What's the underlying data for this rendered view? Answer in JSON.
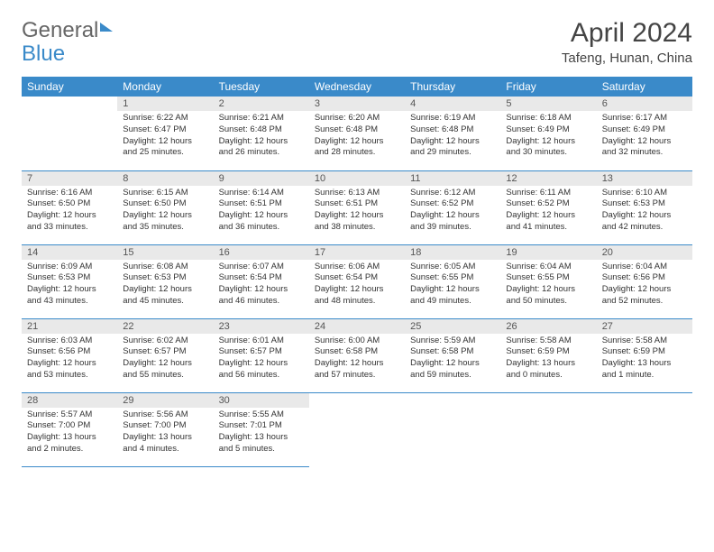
{
  "logo": {
    "part1": "General",
    "part2": "Blue"
  },
  "title": "April 2024",
  "location": "Tafeng, Hunan, China",
  "weekdays": [
    "Sunday",
    "Monday",
    "Tuesday",
    "Wednesday",
    "Thursday",
    "Friday",
    "Saturday"
  ],
  "colors": {
    "header_bg": "#3a8ac9",
    "header_text": "#ffffff",
    "daynum_bg": "#e9e9e9",
    "row_border": "#3a8ac9",
    "body_text": "#333333",
    "logo_blue": "#3a8ac9",
    "logo_gray": "#666666"
  },
  "weeks": [
    [
      {
        "empty": true
      },
      {
        "num": "1",
        "sunrise": "Sunrise: 6:22 AM",
        "sunset": "Sunset: 6:47 PM",
        "day1": "Daylight: 12 hours",
        "day2": "and 25 minutes."
      },
      {
        "num": "2",
        "sunrise": "Sunrise: 6:21 AM",
        "sunset": "Sunset: 6:48 PM",
        "day1": "Daylight: 12 hours",
        "day2": "and 26 minutes."
      },
      {
        "num": "3",
        "sunrise": "Sunrise: 6:20 AM",
        "sunset": "Sunset: 6:48 PM",
        "day1": "Daylight: 12 hours",
        "day2": "and 28 minutes."
      },
      {
        "num": "4",
        "sunrise": "Sunrise: 6:19 AM",
        "sunset": "Sunset: 6:48 PM",
        "day1": "Daylight: 12 hours",
        "day2": "and 29 minutes."
      },
      {
        "num": "5",
        "sunrise": "Sunrise: 6:18 AM",
        "sunset": "Sunset: 6:49 PM",
        "day1": "Daylight: 12 hours",
        "day2": "and 30 minutes."
      },
      {
        "num": "6",
        "sunrise": "Sunrise: 6:17 AM",
        "sunset": "Sunset: 6:49 PM",
        "day1": "Daylight: 12 hours",
        "day2": "and 32 minutes."
      }
    ],
    [
      {
        "num": "7",
        "sunrise": "Sunrise: 6:16 AM",
        "sunset": "Sunset: 6:50 PM",
        "day1": "Daylight: 12 hours",
        "day2": "and 33 minutes."
      },
      {
        "num": "8",
        "sunrise": "Sunrise: 6:15 AM",
        "sunset": "Sunset: 6:50 PM",
        "day1": "Daylight: 12 hours",
        "day2": "and 35 minutes."
      },
      {
        "num": "9",
        "sunrise": "Sunrise: 6:14 AM",
        "sunset": "Sunset: 6:51 PM",
        "day1": "Daylight: 12 hours",
        "day2": "and 36 minutes."
      },
      {
        "num": "10",
        "sunrise": "Sunrise: 6:13 AM",
        "sunset": "Sunset: 6:51 PM",
        "day1": "Daylight: 12 hours",
        "day2": "and 38 minutes."
      },
      {
        "num": "11",
        "sunrise": "Sunrise: 6:12 AM",
        "sunset": "Sunset: 6:52 PM",
        "day1": "Daylight: 12 hours",
        "day2": "and 39 minutes."
      },
      {
        "num": "12",
        "sunrise": "Sunrise: 6:11 AM",
        "sunset": "Sunset: 6:52 PM",
        "day1": "Daylight: 12 hours",
        "day2": "and 41 minutes."
      },
      {
        "num": "13",
        "sunrise": "Sunrise: 6:10 AM",
        "sunset": "Sunset: 6:53 PM",
        "day1": "Daylight: 12 hours",
        "day2": "and 42 minutes."
      }
    ],
    [
      {
        "num": "14",
        "sunrise": "Sunrise: 6:09 AM",
        "sunset": "Sunset: 6:53 PM",
        "day1": "Daylight: 12 hours",
        "day2": "and 43 minutes."
      },
      {
        "num": "15",
        "sunrise": "Sunrise: 6:08 AM",
        "sunset": "Sunset: 6:53 PM",
        "day1": "Daylight: 12 hours",
        "day2": "and 45 minutes."
      },
      {
        "num": "16",
        "sunrise": "Sunrise: 6:07 AM",
        "sunset": "Sunset: 6:54 PM",
        "day1": "Daylight: 12 hours",
        "day2": "and 46 minutes."
      },
      {
        "num": "17",
        "sunrise": "Sunrise: 6:06 AM",
        "sunset": "Sunset: 6:54 PM",
        "day1": "Daylight: 12 hours",
        "day2": "and 48 minutes."
      },
      {
        "num": "18",
        "sunrise": "Sunrise: 6:05 AM",
        "sunset": "Sunset: 6:55 PM",
        "day1": "Daylight: 12 hours",
        "day2": "and 49 minutes."
      },
      {
        "num": "19",
        "sunrise": "Sunrise: 6:04 AM",
        "sunset": "Sunset: 6:55 PM",
        "day1": "Daylight: 12 hours",
        "day2": "and 50 minutes."
      },
      {
        "num": "20",
        "sunrise": "Sunrise: 6:04 AM",
        "sunset": "Sunset: 6:56 PM",
        "day1": "Daylight: 12 hours",
        "day2": "and 52 minutes."
      }
    ],
    [
      {
        "num": "21",
        "sunrise": "Sunrise: 6:03 AM",
        "sunset": "Sunset: 6:56 PM",
        "day1": "Daylight: 12 hours",
        "day2": "and 53 minutes."
      },
      {
        "num": "22",
        "sunrise": "Sunrise: 6:02 AM",
        "sunset": "Sunset: 6:57 PM",
        "day1": "Daylight: 12 hours",
        "day2": "and 55 minutes."
      },
      {
        "num": "23",
        "sunrise": "Sunrise: 6:01 AM",
        "sunset": "Sunset: 6:57 PM",
        "day1": "Daylight: 12 hours",
        "day2": "and 56 minutes."
      },
      {
        "num": "24",
        "sunrise": "Sunrise: 6:00 AM",
        "sunset": "Sunset: 6:58 PM",
        "day1": "Daylight: 12 hours",
        "day2": "and 57 minutes."
      },
      {
        "num": "25",
        "sunrise": "Sunrise: 5:59 AM",
        "sunset": "Sunset: 6:58 PM",
        "day1": "Daylight: 12 hours",
        "day2": "and 59 minutes."
      },
      {
        "num": "26",
        "sunrise": "Sunrise: 5:58 AM",
        "sunset": "Sunset: 6:59 PM",
        "day1": "Daylight: 13 hours",
        "day2": "and 0 minutes."
      },
      {
        "num": "27",
        "sunrise": "Sunrise: 5:58 AM",
        "sunset": "Sunset: 6:59 PM",
        "day1": "Daylight: 13 hours",
        "day2": "and 1 minute."
      }
    ],
    [
      {
        "num": "28",
        "sunrise": "Sunrise: 5:57 AM",
        "sunset": "Sunset: 7:00 PM",
        "day1": "Daylight: 13 hours",
        "day2": "and 2 minutes."
      },
      {
        "num": "29",
        "sunrise": "Sunrise: 5:56 AM",
        "sunset": "Sunset: 7:00 PM",
        "day1": "Daylight: 13 hours",
        "day2": "and 4 minutes."
      },
      {
        "num": "30",
        "sunrise": "Sunrise: 5:55 AM",
        "sunset": "Sunset: 7:01 PM",
        "day1": "Daylight: 13 hours",
        "day2": "and 5 minutes."
      },
      {
        "empty": true
      },
      {
        "empty": true
      },
      {
        "empty": true
      },
      {
        "empty": true
      }
    ]
  ]
}
